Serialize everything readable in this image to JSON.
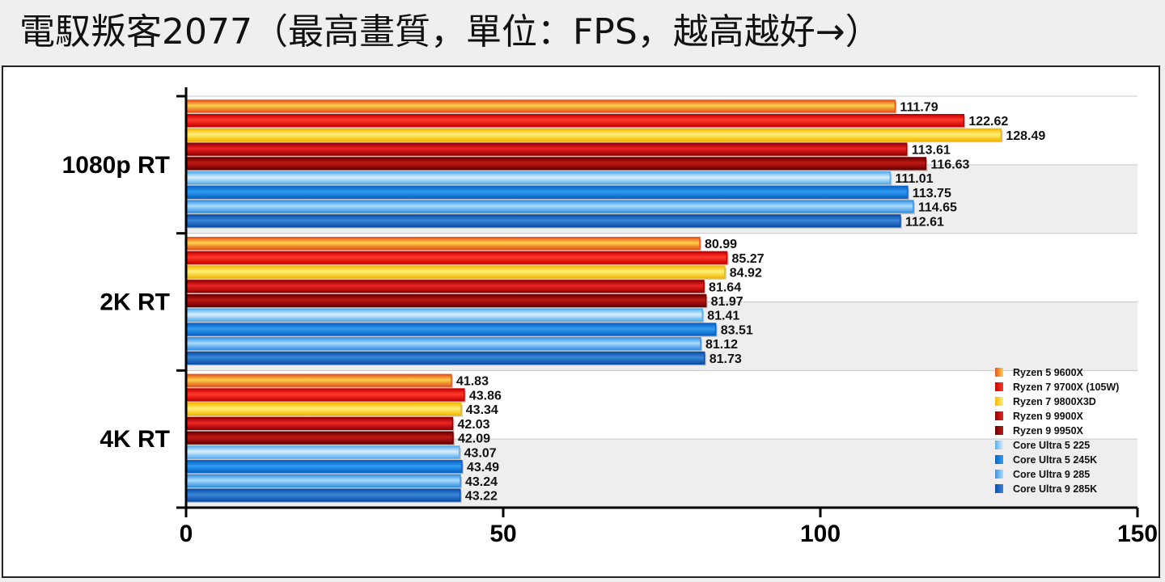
{
  "title": "電馭叛客2077（最高畫質，單位：FPS，越高越好→）",
  "chart_data": {
    "type": "bar",
    "orientation": "horizontal",
    "categories": [
      "1080p RT",
      "2K RT",
      "4K RT"
    ],
    "xlim": [
      0,
      150
    ],
    "xticks": [
      "0",
      "50",
      "100",
      "150"
    ],
    "xtick_values": [
      0,
      50,
      100,
      150
    ],
    "grid": true,
    "legend_position": "bottom-right",
    "series": [
      {
        "name": "Ryzen 5 9600X",
        "values": [
          111.79,
          80.99,
          41.83
        ],
        "labels": [
          "111.79",
          "80.99",
          "41.83"
        ],
        "color_light": "#fbd04a",
        "color_dark": "#e8551c"
      },
      {
        "name": "Ryzen 7 9700X (105W)",
        "values": [
          122.62,
          85.27,
          43.86
        ],
        "labels": [
          "122.62",
          "85.27",
          "43.86"
        ],
        "color_light": "#ff3a2a",
        "color_dark": "#c80000"
      },
      {
        "name": "Ryzen 7 9800X3D",
        "values": [
          128.49,
          84.92,
          43.34
        ],
        "labels": [
          "128.49",
          "84.92",
          "43.34"
        ],
        "color_light": "#fff07a",
        "color_dark": "#f5b800"
      },
      {
        "name": "Ryzen 9 9900X",
        "values": [
          113.61,
          81.64,
          42.03
        ],
        "labels": [
          "113.61",
          "81.64",
          "42.03"
        ],
        "color_light": "#ee2424",
        "color_dark": "#940000"
      },
      {
        "name": "Ryzen 9 9950X",
        "values": [
          116.63,
          81.97,
          42.09
        ],
        "labels": [
          "116.63",
          "81.97",
          "42.09"
        ],
        "color_light": "#c01a14",
        "color_dark": "#6a0000"
      },
      {
        "name": "Core Ultra 5 225",
        "values": [
          111.01,
          81.41,
          43.07
        ],
        "labels": [
          "111.01",
          "81.41",
          "43.07"
        ],
        "color_light": "#d8efff",
        "color_dark": "#5aaeea"
      },
      {
        "name": "Core Ultra 5 245K",
        "values": [
          113.75,
          83.51,
          43.49
        ],
        "labels": [
          "113.75",
          "83.51",
          "43.49"
        ],
        "color_light": "#2e9cf0",
        "color_dark": "#0a62c6"
      },
      {
        "name": "Core Ultra 9 285",
        "values": [
          114.65,
          81.12,
          43.24
        ],
        "labels": [
          "114.65",
          "81.12",
          "43.24"
        ],
        "color_light": "#a8dcff",
        "color_dark": "#3a92e0"
      },
      {
        "name": "Core Ultra 9 285K",
        "values": [
          112.61,
          81.73,
          43.22
        ],
        "labels": [
          "112.61",
          "81.73",
          "43.22"
        ],
        "color_light": "#3a86d8",
        "color_dark": "#0a4ea8"
      }
    ]
  }
}
